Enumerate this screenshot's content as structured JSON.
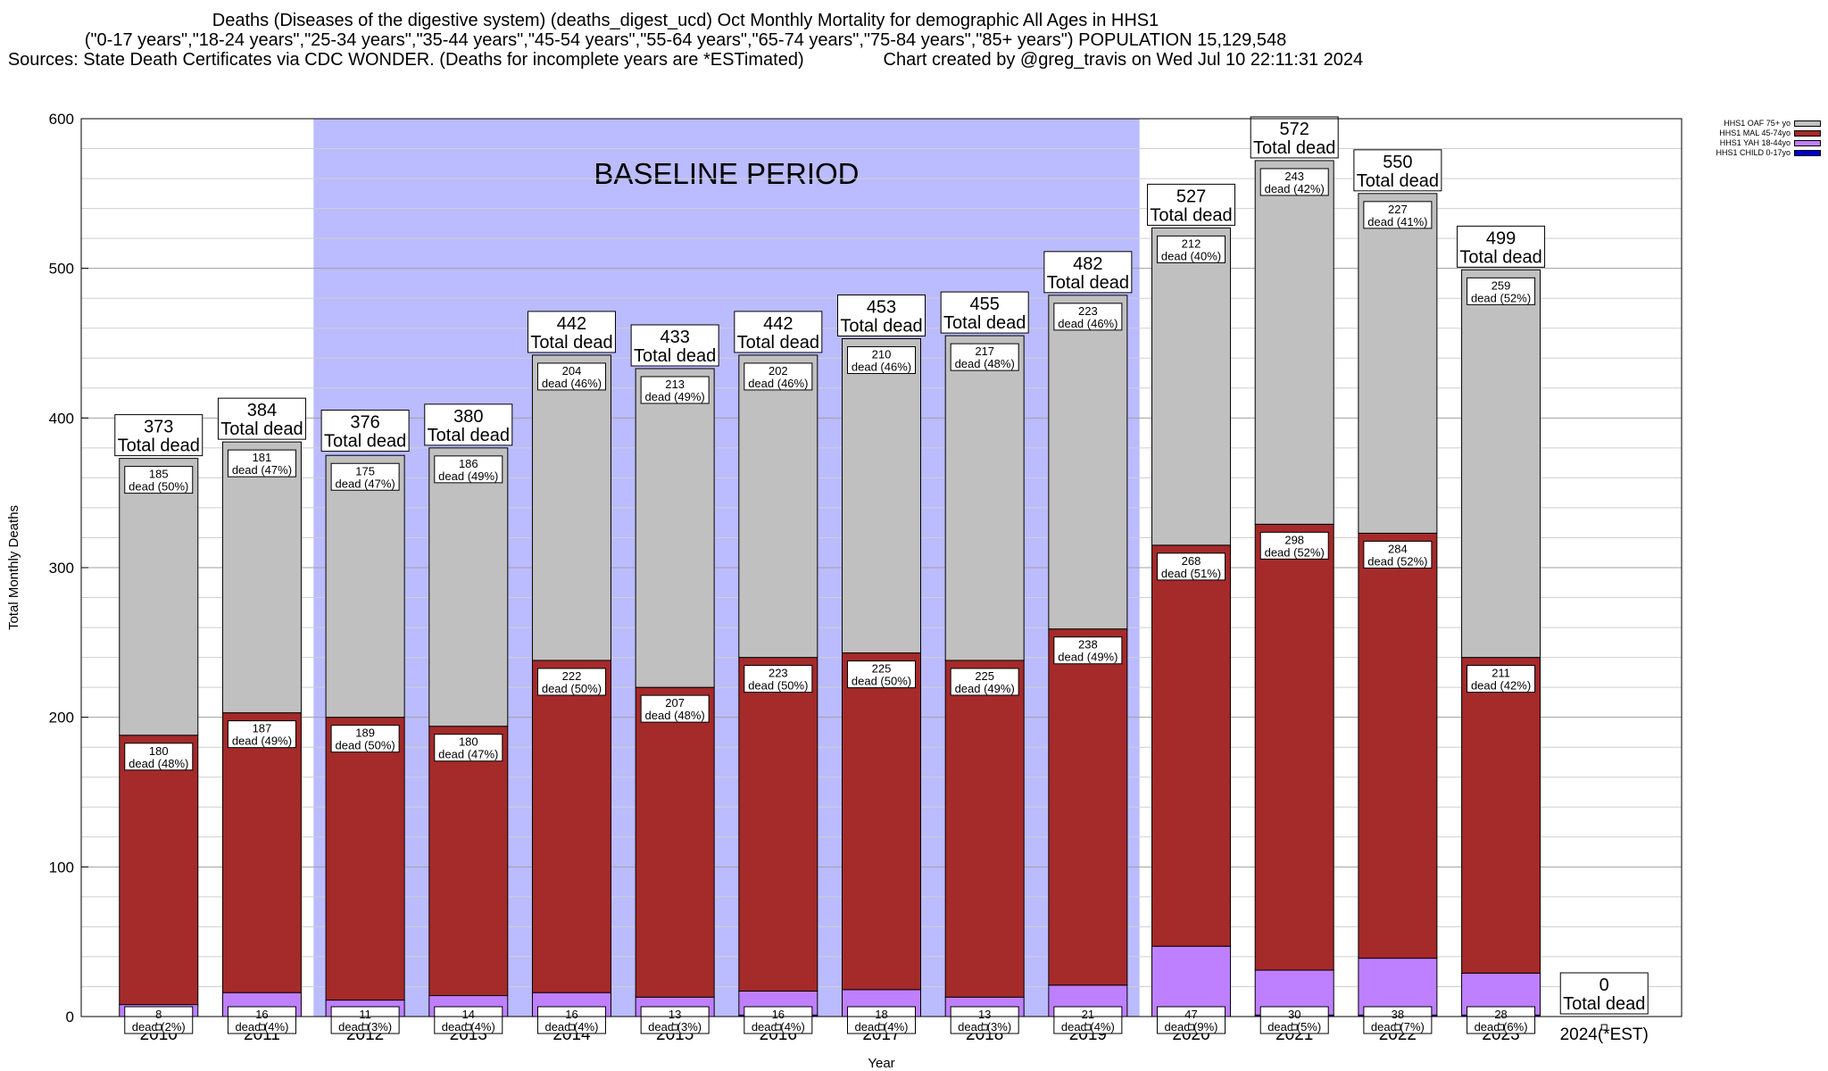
{
  "colors": {
    "oaf": "#c0c0c0",
    "mal": "#a52a2a",
    "yah": "#bf80ff",
    "child": "#0000cd",
    "baseline": "#bbbbff"
  },
  "chart_data": {
    "type": "bar",
    "stacked": true,
    "title_lines": [
      "Deaths (Diseases of the digestive system) (deaths_digest_ucd) Oct Monthly Mortality for demographic All Ages in HHS1",
      "(\"0-17 years\",\"18-24 years\",\"25-34 years\",\"35-44 years\",\"45-54 years\",\"55-64 years\",\"65-74 years\",\"75-84 years\",\"85+ years\") POPULATION 15,129,548",
      "Sources: State Death Certificates via CDC WONDER. (Deaths for incomplete years are *ESTimated)                Chart created by @greg_travis on Wed Jul 10 22:11:31 2024"
    ],
    "xlabel": "Year",
    "ylabel": "Total Monthly Deaths",
    "ylim": [
      0,
      600
    ],
    "yticks": [
      0,
      100,
      200,
      300,
      400,
      500,
      600
    ],
    "grid": true,
    "legend_position": "top-right",
    "baseline_label": "BASELINE PERIOD",
    "baseline_range": [
      "2012",
      "2019"
    ],
    "total_suffix": "Total dead",
    "categories": [
      "2010",
      "2011",
      "2012",
      "2013",
      "2014",
      "2015",
      "2016",
      "2017",
      "2018",
      "2019",
      "2020",
      "2021",
      "2022",
      "2023",
      "2024(*EST)"
    ],
    "totals": [
      373,
      384,
      376,
      380,
      442,
      433,
      442,
      453,
      455,
      482,
      527,
      572,
      550,
      499,
      0
    ],
    "series": [
      {
        "name": "HHS1 CHILD 0-17yo",
        "key": "child",
        "values": [
          0,
          0,
          0,
          0,
          0,
          0,
          1,
          0,
          0,
          0,
          0,
          1,
          1,
          1,
          0
        ],
        "labels": [
          "",
          "",
          "",
          "",
          "",
          "",
          "",
          "",
          "",
          "",
          "",
          "",
          "",
          "",
          ""
        ]
      },
      {
        "name": "HHS1 YAH 18-44yo",
        "key": "yah",
        "values": [
          8,
          16,
          11,
          14,
          16,
          13,
          16,
          18,
          13,
          21,
          47,
          30,
          38,
          28,
          0
        ],
        "labels": [
          "dead (2%)",
          "dead (4%)",
          "dead (3%)",
          "dead (4%)",
          "dead (4%)",
          "dead (3%)",
          "dead (4%)",
          "dead (4%)",
          "dead (3%)",
          "dead (4%)",
          "dead (9%)",
          "dead (5%)",
          "dead (7%)",
          "dead (6%)",
          ""
        ]
      },
      {
        "name": "HHS1 MAL 45-74yo",
        "key": "mal",
        "values": [
          180,
          187,
          189,
          180,
          222,
          207,
          223,
          225,
          225,
          238,
          268,
          298,
          284,
          211,
          0
        ],
        "labels": [
          "dead (48%)",
          "dead (49%)",
          "dead (50%)",
          "dead (47%)",
          "dead (50%)",
          "dead (48%)",
          "dead (50%)",
          "dead (50%)",
          "dead (49%)",
          "dead (49%)",
          "dead (51%)",
          "dead (52%)",
          "dead (52%)",
          "dead (42%)",
          ""
        ]
      },
      {
        "name": "HHS1 OAF 75+ yo",
        "key": "oaf",
        "values": [
          185,
          181,
          175,
          186,
          204,
          213,
          202,
          210,
          217,
          223,
          212,
          243,
          227,
          259,
          0
        ],
        "labels": [
          "dead (50%)",
          "dead (47%)",
          "dead (47%)",
          "dead (49%)",
          "dead (46%)",
          "dead (49%)",
          "dead (46%)",
          "dead (46%)",
          "dead (48%)",
          "dead (46%)",
          "dead (40%)",
          "dead (42%)",
          "dead (41%)",
          "dead (52%)",
          ""
        ]
      }
    ]
  }
}
